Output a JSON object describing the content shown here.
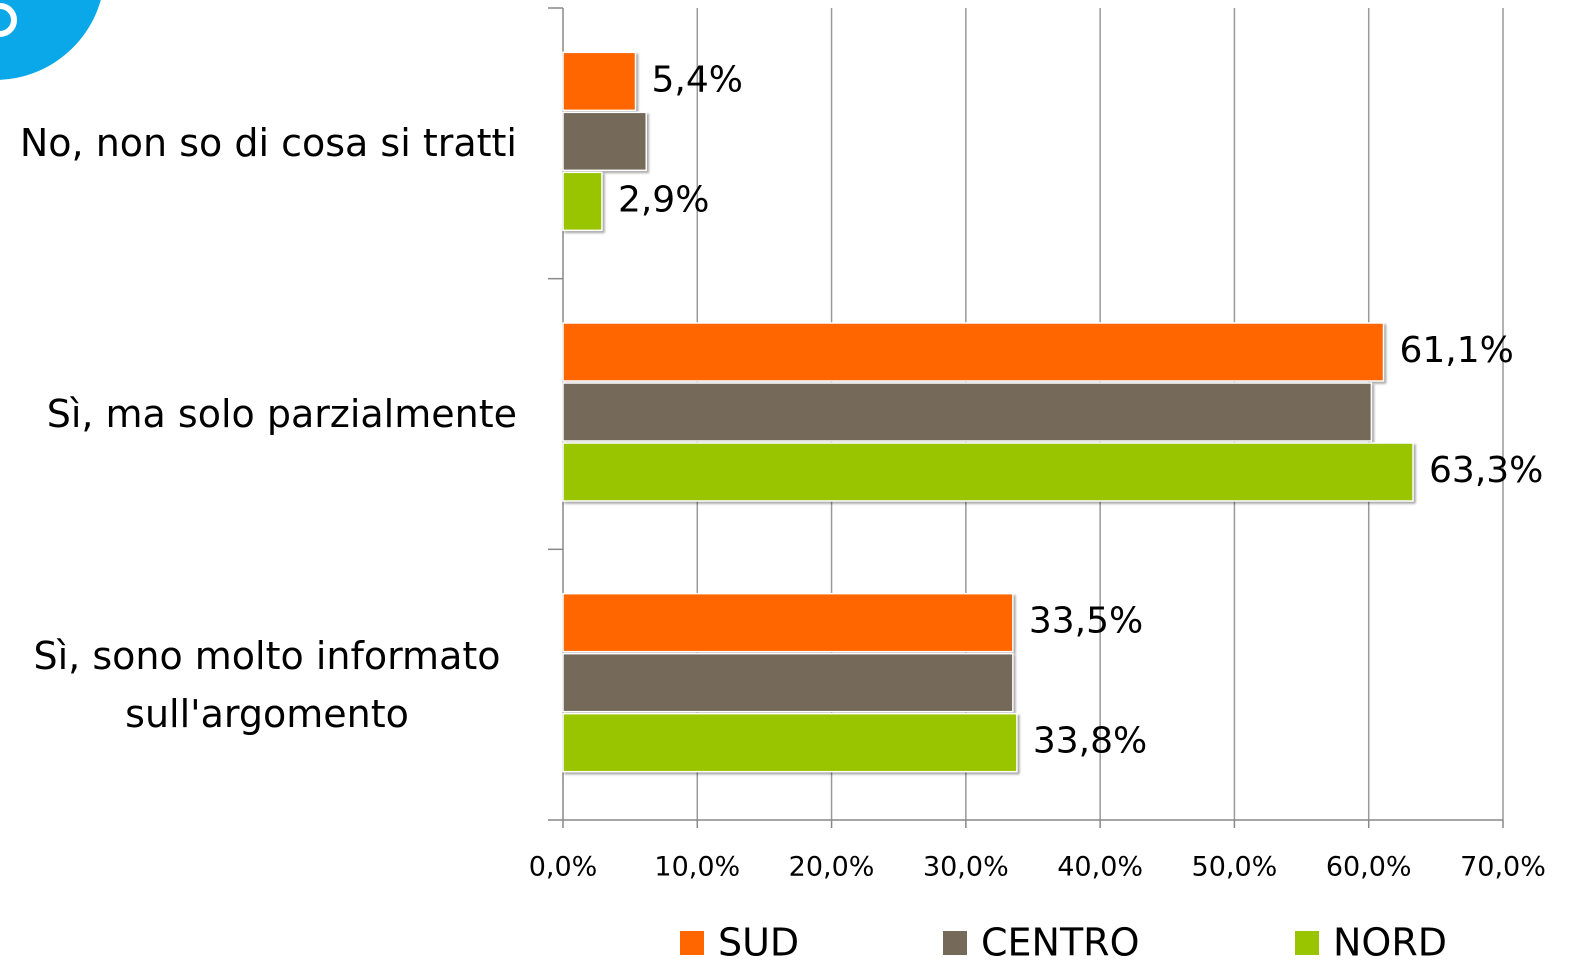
{
  "chart_data": {
    "type": "barh",
    "categories": [
      "No, non so di cosa si tratti",
      "Sì, ma solo parzialmente",
      "Sì, sono molto informato sull'argomento"
    ],
    "series": [
      {
        "name": "SUD",
        "color": "#ff6600",
        "values": [
          5.4,
          61.1,
          33.5
        ],
        "value_labels": [
          "5,4%",
          "61,1%",
          "33,5%"
        ]
      },
      {
        "name": "CENTRO",
        "color": "#75695a",
        "values": [
          6.2,
          60.2,
          33.5
        ]
      },
      {
        "name": "NORD",
        "color": "#99c400",
        "values": [
          2.9,
          63.3,
          33.8
        ],
        "value_labels": [
          "2,9%",
          "63,3%",
          "33,8%"
        ]
      }
    ],
    "xlim": [
      0,
      70
    ],
    "xticks": [
      {
        "value": 0,
        "label": "0,0%"
      },
      {
        "value": 10,
        "label": "10,0%"
      },
      {
        "value": 20,
        "label": "20,0%"
      },
      {
        "value": 30,
        "label": "30,0%"
      },
      {
        "value": 40,
        "label": "40,0%"
      },
      {
        "value": 50,
        "label": "50,0%"
      },
      {
        "value": 60,
        "label": "60,0%"
      },
      {
        "value": 70,
        "label": "70,0%"
      }
    ],
    "grid": true,
    "legend": "bottom"
  }
}
